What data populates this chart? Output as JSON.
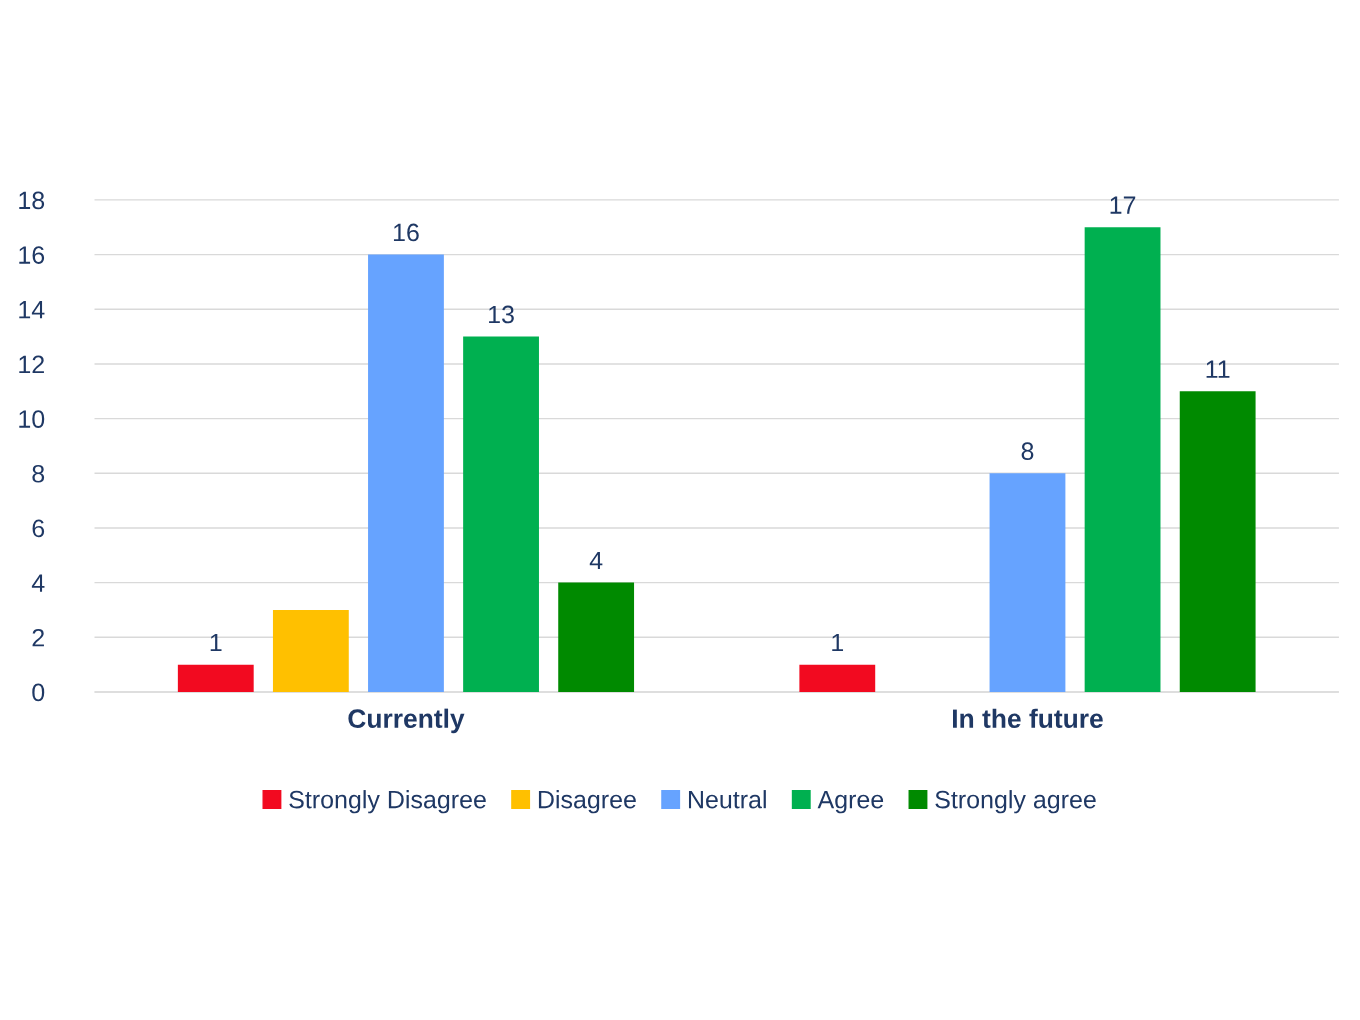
{
  "chart_data": {
    "type": "bar",
    "categories": [
      "Currently",
      "In the future"
    ],
    "series": [
      {
        "name": "Strongly Disagree",
        "color": "#f20a20",
        "values": [
          1,
          1
        ],
        "value_labels": [
          "1",
          "1"
        ]
      },
      {
        "name": "Disagree",
        "color": "#ffc000",
        "values": [
          3,
          null
        ],
        "value_labels": [
          null,
          null
        ]
      },
      {
        "name": "Neutral",
        "color": "#66a3ff",
        "values": [
          16,
          8
        ],
        "value_labels": [
          "16",
          "8"
        ]
      },
      {
        "name": "Agree",
        "color": "#00b050",
        "values": [
          13,
          17
        ],
        "value_labels": [
          "13",
          "17"
        ]
      },
      {
        "name": "Strongly agree",
        "color": "#008a00",
        "values": [
          4,
          11
        ],
        "value_labels": [
          "4",
          "11"
        ]
      }
    ],
    "ylim": [
      0,
      18
    ],
    "yticks": [
      0,
      2,
      4,
      6,
      8,
      10,
      12,
      14,
      16,
      18
    ],
    "grid": "y",
    "legend": "bottom"
  }
}
